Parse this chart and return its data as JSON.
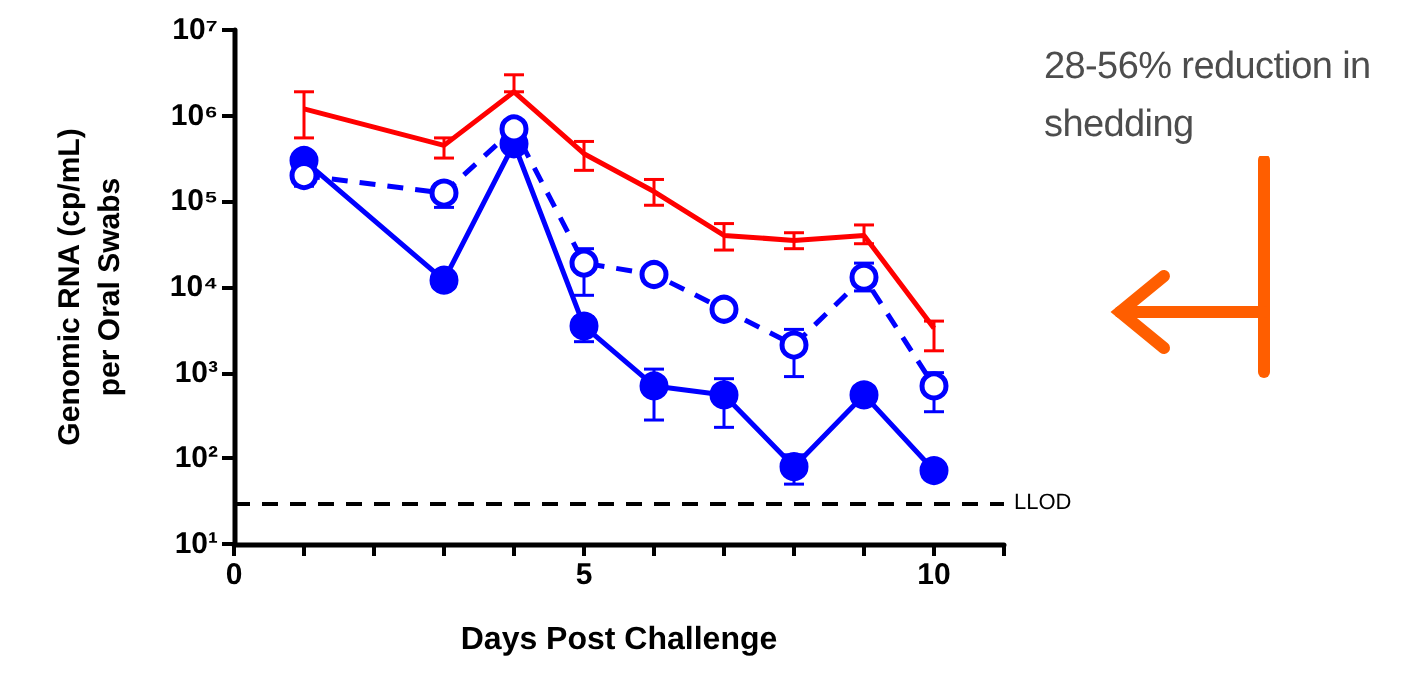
{
  "chart_data": {
    "type": "line",
    "xlabel": "Days Post Challenge",
    "ylabel": "Genomic RNA (cp/mL)\nper Oral Swabs",
    "log": "y",
    "grid": false,
    "xlim": [
      0,
      11
    ],
    "xticks": [
      0,
      {
        "value": 1,
        "label": null
      },
      {
        "value": 2,
        "label": null
      },
      {
        "value": 3,
        "label": null
      },
      {
        "value": 4,
        "label": null
      },
      5,
      {
        "value": 6,
        "label": null
      },
      {
        "value": 7,
        "label": null
      },
      {
        "value": 8,
        "label": null
      },
      {
        "value": 9,
        "label": null
      },
      10,
      {
        "value": 11,
        "label": null
      }
    ],
    "ylim": [
      10,
      10000000
    ],
    "yticks": [
      {
        "value": 10,
        "label": "10¹"
      },
      {
        "value": 100,
        "label": "10²"
      },
      {
        "value": 1000,
        "label": "10³"
      },
      {
        "value": 10000,
        "label": "10⁴"
      },
      {
        "value": 100000,
        "label": "10⁵"
      },
      {
        "value": 1000000,
        "label": "10⁶"
      },
      {
        "value": 10000000,
        "label": "10⁷"
      }
    ],
    "x": [
      1,
      3,
      4,
      5,
      6,
      7,
      8,
      9,
      10
    ],
    "series": [
      {
        "color": "#ff0000",
        "marker": "none",
        "line_style": "solid",
        "values": [
          1200000,
          450000,
          1900000,
          360000,
          130000,
          40000,
          35000,
          40000,
          3300
        ],
        "errors": [
          [
            550000,
            1900000
          ],
          [
            320000,
            550000
          ],
          [
            1900000,
            3000000
          ],
          [
            230000,
            500000
          ],
          [
            90000,
            180000
          ],
          [
            27000,
            55000
          ],
          [
            28000,
            43000
          ],
          [
            32000,
            53000
          ],
          [
            1800,
            4000
          ]
        ]
      },
      {
        "color": "#0000ff",
        "marker": "circle",
        "line_style": "solid",
        "values": [
          300000,
          12000,
          470000,
          3500,
          700,
          550,
          80,
          550,
          72
        ],
        "errors": [
          null,
          null,
          null,
          [
            2300,
            4500
          ],
          [
            280,
            1100
          ],
          [
            230,
            850
          ],
          [
            50,
            110
          ],
          null,
          null
        ]
      },
      {
        "color": "#0000ff",
        "marker": "circle",
        "line_style": "dashed",
        "values": [
          200000,
          125000,
          700000,
          19000,
          14000,
          5500,
          2100,
          13000,
          700
        ],
        "errors": [
          [
            150000,
            260000
          ],
          [
            85000,
            160000
          ],
          [
            500000,
            850000
          ],
          [
            8000,
            28000
          ],
          null,
          null,
          [
            900,
            3200
          ],
          [
            9000,
            19000
          ],
          [
            350,
            1000
          ]
        ]
      }
    ],
    "ref_lines": [
      {
        "axis": "y",
        "value": 30,
        "label": "LLOD",
        "color": "#000000",
        "line_style": "dashed"
      }
    ],
    "annotations": [
      "28-56% reduction in shedding"
    ]
  }
}
